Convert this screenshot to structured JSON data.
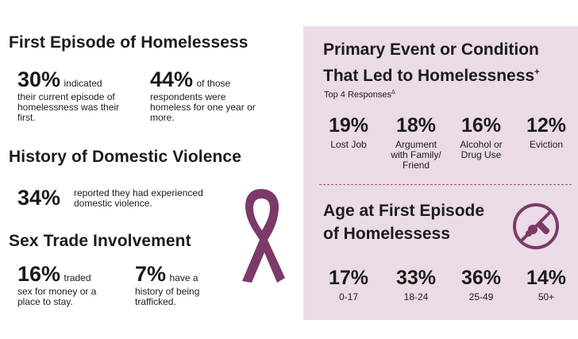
{
  "colors": {
    "panel_bg": "#eadbe6",
    "accent": "#7b3a68",
    "divider": "#a8557e"
  },
  "left": {
    "first_episode": {
      "title": "First Episode of Homelessess",
      "stat1_num": "30%",
      "stat1_line1": "indicated",
      "stat1_rest": "their current episode of homelessness was their first.",
      "stat2_num": "44%",
      "stat2_line1": "of those",
      "stat2_rest": "respondents were homeless for one year or more."
    },
    "domestic_violence": {
      "title": "History of Domestic Violence",
      "stat_num": "34%",
      "stat_text": "reported they had experienced domestic violence."
    },
    "sex_trade": {
      "title": "Sex Trade Involvement",
      "stat1_num": "16%",
      "stat1_line1": "traded",
      "stat1_rest": "sex for money or a place to stay.",
      "stat2_num": "7%",
      "stat2_line1": "have a",
      "stat2_rest": "history of being trafficked."
    },
    "ribbon_icon": "awareness-ribbon-icon"
  },
  "right": {
    "primary_event": {
      "title_line1": "Primary Event or Condition",
      "title_line2": "That Led to Homelessness",
      "title_mark": "+",
      "subtitle": "Top 4 Responses",
      "subtitle_mark": "Δ",
      "stats": [
        {
          "num": "19%",
          "label": "Lost Job"
        },
        {
          "num": "18%",
          "label": "Argument with Family/ Friend"
        },
        {
          "num": "16%",
          "label": "Alcohol or Drug Use"
        },
        {
          "num": "12%",
          "label": "Eviction"
        }
      ]
    },
    "age": {
      "title_line1": "Age at First Episode",
      "title_line2": "of Homelessess",
      "icon": "no-pacifier-icon",
      "stats": [
        {
          "num": "17%",
          "label": "0-17"
        },
        {
          "num": "33%",
          "label": "18-24"
        },
        {
          "num": "36%",
          "label": "25-49"
        },
        {
          "num": "14%",
          "label": "50+"
        }
      ]
    }
  }
}
